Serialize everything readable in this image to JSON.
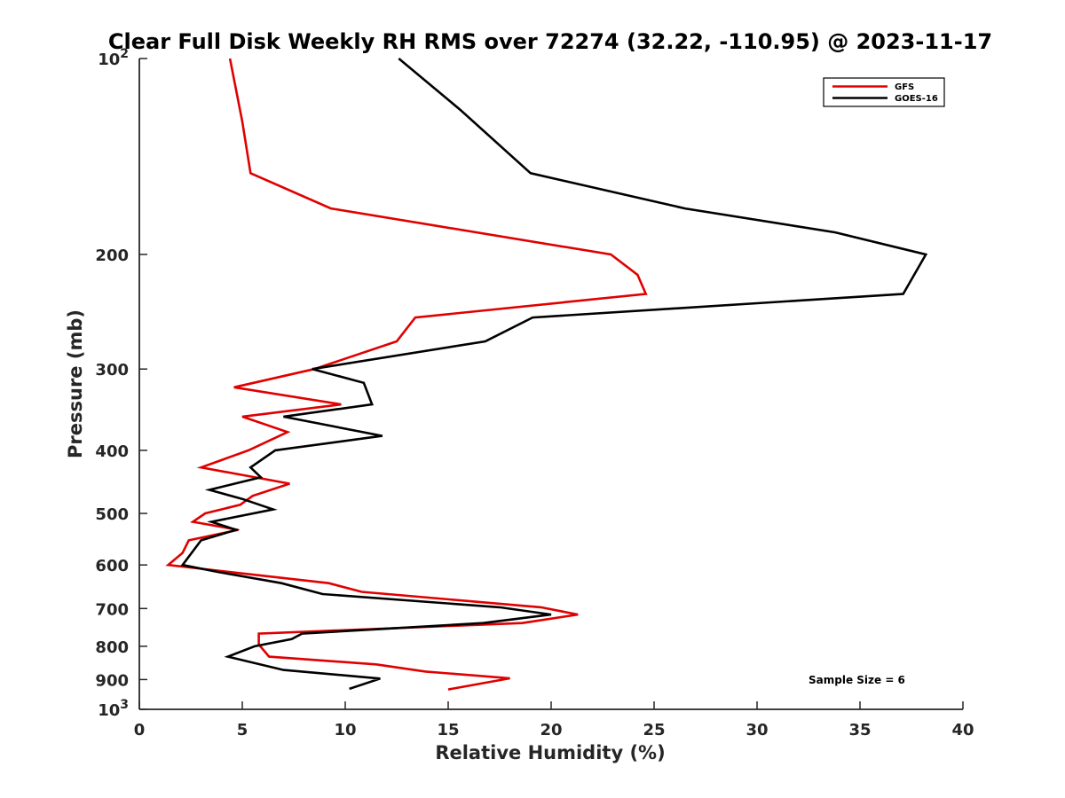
{
  "chart_data": {
    "type": "line",
    "title": "Clear Full Disk Weekly RH RMS over 72274 (32.22, -110.95) @ 2023-11-17",
    "xlabel": "Relative Humidity (%)",
    "ylabel": "Pressure (mb)",
    "xlim": [
      0,
      40
    ],
    "ylim": [
      100,
      1000
    ],
    "y_scale": "log",
    "y_reversed": true,
    "grid": false,
    "legend_position": "top-right",
    "x_ticks": [
      "0",
      "5",
      "10",
      "15",
      "20",
      "25",
      "30",
      "35",
      "40"
    ],
    "x_tick_values": [
      0,
      5,
      10,
      15,
      20,
      25,
      30,
      35,
      40
    ],
    "y_ticks": [
      {
        "value": 100,
        "base": "10",
        "exp": "2"
      },
      {
        "value": 200,
        "label": "200"
      },
      {
        "value": 300,
        "label": "300"
      },
      {
        "value": 400,
        "label": "400"
      },
      {
        "value": 500,
        "label": "500"
      },
      {
        "value": 600,
        "label": "600"
      },
      {
        "value": 700,
        "label": "700"
      },
      {
        "value": 800,
        "label": "800"
      },
      {
        "value": 900,
        "label": "900"
      },
      {
        "value": 1000,
        "base": "10",
        "exp": "3"
      }
    ],
    "annotation": "Sample Size = 6",
    "series": [
      {
        "name": "GFS",
        "color": "#e00000",
        "points": [
          [
            4.4,
            100
          ],
          [
            5.0,
            125
          ],
          [
            5.4,
            150
          ],
          [
            9.3,
            170
          ],
          [
            22.9,
            200
          ],
          [
            24.2,
            215
          ],
          [
            24.6,
            230
          ],
          [
            13.4,
            250
          ],
          [
            12.5,
            272
          ],
          [
            8.5,
            300
          ],
          [
            4.6,
            320
          ],
          [
            9.8,
            340
          ],
          [
            5.0,
            355
          ],
          [
            7.2,
            375
          ],
          [
            5.3,
            400
          ],
          [
            3.0,
            425
          ],
          [
            7.3,
            450
          ],
          [
            5.5,
            470
          ],
          [
            4.9,
            485
          ],
          [
            3.2,
            500
          ],
          [
            2.6,
            515
          ],
          [
            4.8,
            530
          ],
          [
            2.4,
            550
          ],
          [
            2.1,
            575
          ],
          [
            1.4,
            600
          ],
          [
            9.2,
            640
          ],
          [
            10.8,
            660
          ],
          [
            19.5,
            697
          ],
          [
            21.3,
            715
          ],
          [
            18.6,
            737
          ],
          [
            5.8,
            765
          ],
          [
            5.8,
            795
          ],
          [
            6.3,
            830
          ],
          [
            11.5,
            853
          ],
          [
            13.9,
            875
          ],
          [
            18.0,
            896
          ],
          [
            15.0,
            932
          ]
        ]
      },
      {
        "name": "GOES-16",
        "color": "#000000",
        "points": [
          [
            12.6,
            100
          ],
          [
            15.6,
            120
          ],
          [
            19.0,
            150
          ],
          [
            26.5,
            170
          ],
          [
            33.8,
            185
          ],
          [
            38.2,
            200
          ],
          [
            37.1,
            230
          ],
          [
            19.1,
            250
          ],
          [
            16.8,
            272
          ],
          [
            8.4,
            300
          ],
          [
            10.9,
            315
          ],
          [
            11.3,
            340
          ],
          [
            7.0,
            355
          ],
          [
            11.8,
            380
          ],
          [
            6.6,
            400
          ],
          [
            5.4,
            425
          ],
          [
            5.9,
            440
          ],
          [
            3.4,
            460
          ],
          [
            5.0,
            475
          ],
          [
            6.5,
            493
          ],
          [
            3.5,
            515
          ],
          [
            4.7,
            530
          ],
          [
            3.0,
            550
          ],
          [
            2.1,
            600
          ],
          [
            3.8,
            615
          ],
          [
            6.9,
            640
          ],
          [
            8.9,
            665
          ],
          [
            17.5,
            697
          ],
          [
            20.0,
            715
          ],
          [
            16.7,
            737
          ],
          [
            7.9,
            765
          ],
          [
            7.4,
            780
          ],
          [
            5.6,
            800
          ],
          [
            4.3,
            830
          ],
          [
            7.0,
            870
          ],
          [
            11.7,
            897
          ],
          [
            10.2,
            930
          ]
        ]
      }
    ]
  }
}
